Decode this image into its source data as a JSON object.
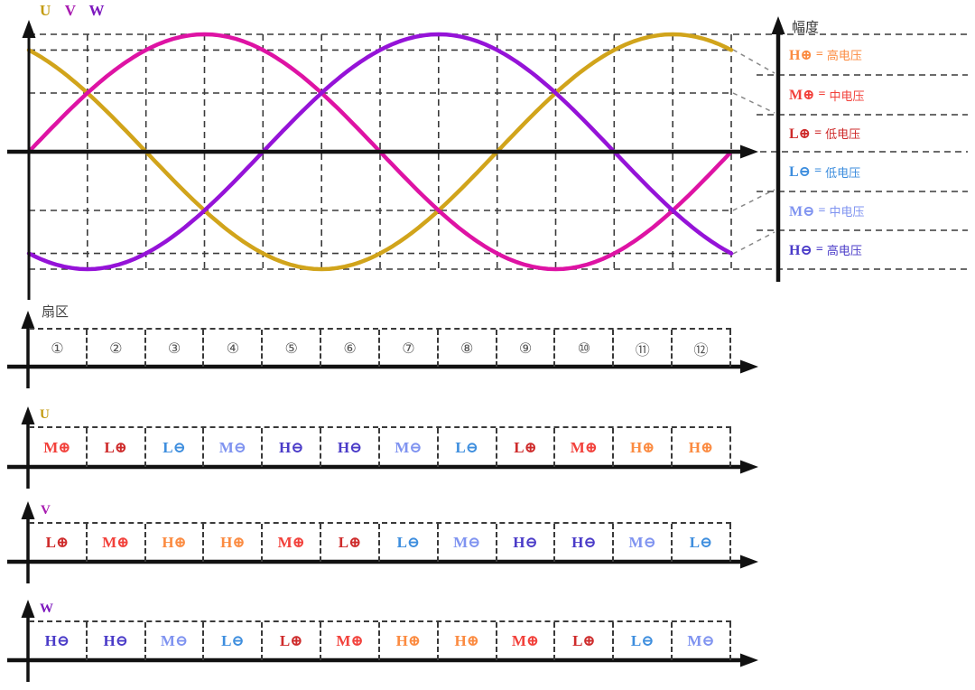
{
  "page": {
    "phase_labels": {
      "u": "U",
      "v": "V",
      "w": "W"
    },
    "amplitude_axis_label": "幅度",
    "sector_axis_label": "扇区"
  },
  "colors": {
    "grid": "#3a3a3a",
    "axis": "#111111",
    "connector": "#888888",
    "sector_number": "#555555",
    "phases": {
      "U": "#D1A41B",
      "V": "#DE13A4",
      "W": "#9513D8"
    },
    "phase_labels": {
      "U": "#C39B10",
      "V": "#A81BB0",
      "W": "#7D18BE"
    },
    "levels": {
      "H+": "#FB8B41",
      "M+": "#F2413B",
      "L+": "#CE2B2B",
      "L-": "#3E8EDE",
      "M-": "#7F93F0",
      "H-": "#4A3BC8"
    }
  },
  "chart_data": {
    "type": "line",
    "title": "Three-phase sine waveforms U / V / W with 12 sectors of 30°",
    "x_range_deg": [
      0,
      360
    ],
    "x_gridline_step_deg": 30,
    "ylim": [
      -1,
      1
    ],
    "y_gridlines": [
      1,
      0.866,
      0.5,
      0,
      -0.5,
      -0.866,
      -1
    ],
    "grid": true,
    "legend_position": "right",
    "series": [
      {
        "name": "U",
        "type": "sine",
        "amplitude": 1,
        "phase_deg": 120
      },
      {
        "name": "V",
        "type": "sine",
        "amplitude": 1,
        "phase_deg": 0
      },
      {
        "name": "W",
        "type": "sine",
        "amplitude": 1,
        "phase_deg": -120
      }
    ]
  },
  "legend": {
    "items": [
      {
        "code": "H⊕",
        "eq": "=",
        "name": "高电压",
        "level": "H+"
      },
      {
        "code": "M⊕",
        "eq": "=",
        "name": "中电压",
        "level": "M+"
      },
      {
        "code": "L⊕",
        "eq": "=",
        "name": "低电压",
        "level": "L+"
      },
      {
        "code": "L⊖",
        "eq": "=",
        "name": "低电压",
        "level": "L-"
      },
      {
        "code": "M⊖",
        "eq": "=",
        "name": "中电压",
        "level": "M-"
      },
      {
        "code": "H⊖",
        "eq": "=",
        "name": "高电压",
        "level": "H-"
      }
    ]
  },
  "sector_row": {
    "cells": [
      "①",
      "②",
      "③",
      "④",
      "⑤",
      "⑥",
      "⑦",
      "⑧",
      "⑨",
      "⑩",
      "⑪",
      "⑫"
    ]
  },
  "phase_rows": [
    {
      "label": "U",
      "cells": [
        "M⊕",
        "L⊕",
        "L⊖",
        "M⊖",
        "H⊖",
        "H⊖",
        "M⊖",
        "L⊖",
        "L⊕",
        "M⊕",
        "H⊕",
        "H⊕"
      ]
    },
    {
      "label": "V",
      "cells": [
        "L⊕",
        "M⊕",
        "H⊕",
        "H⊕",
        "M⊕",
        "L⊕",
        "L⊖",
        "M⊖",
        "H⊖",
        "H⊖",
        "M⊖",
        "L⊖"
      ]
    },
    {
      "label": "W",
      "cells": [
        "H⊖",
        "H⊖",
        "M⊖",
        "L⊖",
        "L⊕",
        "M⊕",
        "H⊕",
        "H⊕",
        "M⊕",
        "L⊕",
        "L⊖",
        "M⊖"
      ]
    }
  ]
}
